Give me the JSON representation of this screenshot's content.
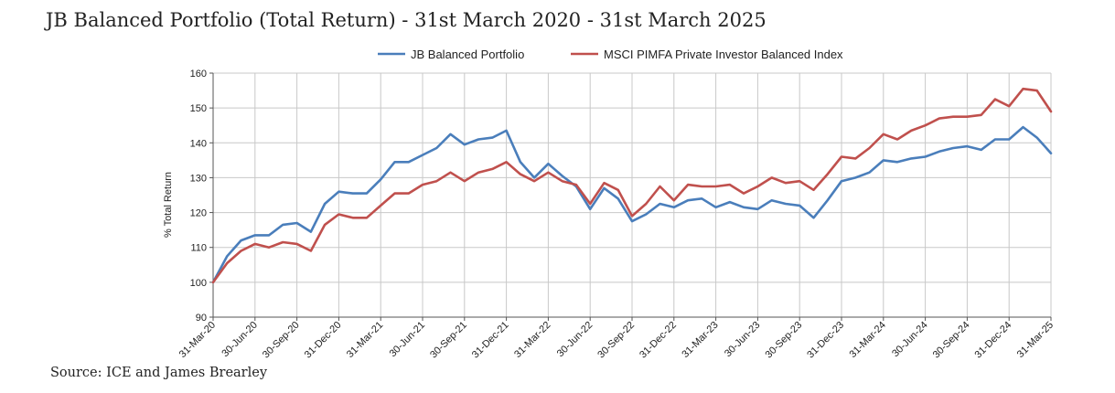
{
  "title": "JB Balanced Portfolio (Total Return) - 31st March 2020 - 31st March 2025",
  "source": "Source: ICE and James Brearley",
  "chart_data": {
    "type": "line",
    "title": "JB Balanced Portfolio (Total Return) - 31st March 2020 - 31st March 2025",
    "ylabel": "% Total Return",
    "xlabel": "",
    "ylim": [
      90,
      160
    ],
    "yticks": [
      90,
      100,
      110,
      120,
      130,
      140,
      150,
      160
    ],
    "grid": true,
    "legend_position": "top",
    "x_tick_labels": [
      "31-Mar-20",
      "30-Jun-20",
      "30-Sep-20",
      "31-Dec-20",
      "31-Mar-21",
      "30-Jun-21",
      "30-Sep-21",
      "31-Dec-21",
      "31-Mar-22",
      "30-Jun-22",
      "30-Sep-22",
      "31-Dec-22",
      "31-Mar-23",
      "30-Jun-23",
      "30-Sep-23",
      "31-Dec-23",
      "31-Mar-24",
      "30-Jun-24",
      "30-Sep-24",
      "31-Dec-24",
      "31-Mar-25"
    ],
    "x": [
      "31-Mar-20",
      "30-Apr-20",
      "31-May-20",
      "30-Jun-20",
      "31-Jul-20",
      "31-Aug-20",
      "30-Sep-20",
      "31-Oct-20",
      "30-Nov-20",
      "31-Dec-20",
      "31-Jan-21",
      "28-Feb-21",
      "31-Mar-21",
      "30-Apr-21",
      "31-May-21",
      "30-Jun-21",
      "31-Jul-21",
      "31-Aug-21",
      "30-Sep-21",
      "31-Oct-21",
      "30-Nov-21",
      "31-Dec-21",
      "31-Jan-22",
      "28-Feb-22",
      "31-Mar-22",
      "30-Apr-22",
      "31-May-22",
      "30-Jun-22",
      "31-Jul-22",
      "31-Aug-22",
      "30-Sep-22",
      "31-Oct-22",
      "30-Nov-22",
      "31-Dec-22",
      "31-Jan-23",
      "28-Feb-23",
      "31-Mar-23",
      "30-Apr-23",
      "31-May-23",
      "30-Jun-23",
      "31-Jul-23",
      "31-Aug-23",
      "30-Sep-23",
      "31-Oct-23",
      "30-Nov-23",
      "31-Dec-23",
      "31-Jan-24",
      "29-Feb-24",
      "31-Mar-24",
      "30-Apr-24",
      "31-May-24",
      "30-Jun-24",
      "31-Jul-24",
      "31-Aug-24",
      "30-Sep-24",
      "31-Oct-24",
      "30-Nov-24",
      "31-Dec-24",
      "31-Jan-25",
      "28-Feb-25",
      "31-Mar-25"
    ],
    "series": [
      {
        "name": "JB Balanced Portfolio",
        "color": "#4a7ebb",
        "values": [
          100,
          107.5,
          112,
          113.5,
          113.5,
          116.5,
          117,
          114.5,
          122.5,
          126,
          125.5,
          125.5,
          129.5,
          134.5,
          134.5,
          136.5,
          138.5,
          142.5,
          139.5,
          141,
          141.5,
          143.5,
          134.5,
          130,
          134,
          130.5,
          127.5,
          121,
          127,
          124,
          117.5,
          119.5,
          122.5,
          121.5,
          123.5,
          124,
          121.5,
          123,
          121.5,
          121,
          123.5,
          122.5,
          122,
          118.5,
          123.5,
          129,
          130,
          131.5,
          135,
          134.5,
          135.5,
          136,
          137.5,
          138.5,
          139,
          138,
          141,
          141,
          144.5,
          141.5,
          137
        ]
      },
      {
        "name": "MSCI PIMFA Private Investor Balanced Index",
        "color": "#c0504d",
        "values": [
          100,
          105.5,
          109,
          111,
          110,
          111.5,
          111,
          109,
          116.5,
          119.5,
          118.5,
          118.5,
          122,
          125.5,
          125.5,
          128,
          129,
          131.5,
          129,
          131.5,
          132.5,
          134.5,
          131,
          129,
          131.5,
          129,
          128,
          122.5,
          128.5,
          126.5,
          119,
          122.5,
          127.5,
          123.5,
          128,
          127.5,
          127.5,
          128,
          125.5,
          127.5,
          130,
          128.5,
          129,
          126.5,
          131,
          136,
          135.5,
          138.5,
          142.5,
          141,
          143.5,
          145,
          147,
          147.5,
          147.5,
          148,
          152.5,
          150.5,
          155.5,
          155,
          149
        ]
      }
    ]
  }
}
